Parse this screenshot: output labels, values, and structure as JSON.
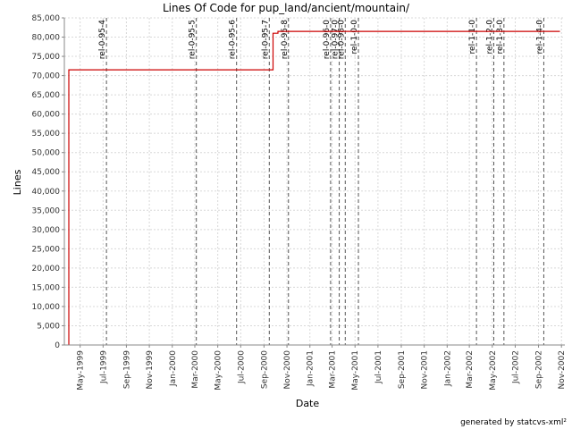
{
  "chart_data": {
    "type": "line",
    "title": "Lines Of Code for pup_land/ancient/mountain/",
    "xlabel": "Date",
    "ylabel": "Lines",
    "ylim": [
      0,
      85000
    ],
    "xlim": [
      "1999-03-20",
      "2002-11-10"
    ],
    "y_ticks": [
      {
        "value": 0,
        "label": "0"
      },
      {
        "value": 5000,
        "label": "5,000"
      },
      {
        "value": 10000,
        "label": "10,000"
      },
      {
        "value": 15000,
        "label": "15,000"
      },
      {
        "value": 20000,
        "label": "20,000"
      },
      {
        "value": 25000,
        "label": "25,000"
      },
      {
        "value": 30000,
        "label": "30,000"
      },
      {
        "value": 35000,
        "label": "35,000"
      },
      {
        "value": 40000,
        "label": "40,000"
      },
      {
        "value": 45000,
        "label": "45,000"
      },
      {
        "value": 50000,
        "label": "50,000"
      },
      {
        "value": 55000,
        "label": "55,000"
      },
      {
        "value": 60000,
        "label": "60,000"
      },
      {
        "value": 65000,
        "label": "65,000"
      },
      {
        "value": 70000,
        "label": "70,000"
      },
      {
        "value": 75000,
        "label": "75,000"
      },
      {
        "value": 80000,
        "label": "80,000"
      },
      {
        "value": 85000,
        "label": "85,000"
      }
    ],
    "x_ticks": [
      {
        "date": "1999-05-01",
        "label": "May-1999"
      },
      {
        "date": "1999-07-01",
        "label": "Jul-1999"
      },
      {
        "date": "1999-09-01",
        "label": "Sep-1999"
      },
      {
        "date": "1999-11-01",
        "label": "Nov-1999"
      },
      {
        "date": "2000-01-01",
        "label": "Jan-2000"
      },
      {
        "date": "2000-03-01",
        "label": "Mar-2000"
      },
      {
        "date": "2000-05-01",
        "label": "May-2000"
      },
      {
        "date": "2000-07-01",
        "label": "Jul-2000"
      },
      {
        "date": "2000-09-01",
        "label": "Sep-2000"
      },
      {
        "date": "2000-11-01",
        "label": "Nov-2000"
      },
      {
        "date": "2001-01-01",
        "label": "Jan-2001"
      },
      {
        "date": "2001-03-01",
        "label": "Mar-2001"
      },
      {
        "date": "2001-05-01",
        "label": "May-2001"
      },
      {
        "date": "2001-07-01",
        "label": "Jul-2001"
      },
      {
        "date": "2001-09-01",
        "label": "Sep-2001"
      },
      {
        "date": "2001-11-01",
        "label": "Nov-2001"
      },
      {
        "date": "2002-01-01",
        "label": "Jan-2002"
      },
      {
        "date": "2002-03-01",
        "label": "Mar-2002"
      },
      {
        "date": "2002-05-01",
        "label": "May-2002"
      },
      {
        "date": "2002-07-01",
        "label": "Jul-2002"
      },
      {
        "date": "2002-09-01",
        "label": "Sep-2002"
      },
      {
        "date": "2002-11-01",
        "label": "Nov-2002"
      }
    ],
    "series": [
      {
        "color": "#cc0000",
        "step": true,
        "points": [
          {
            "x": "1999-04-01",
            "y": 0
          },
          {
            "x": "1999-04-01",
            "y": 71500
          },
          {
            "x": "2000-09-25",
            "y": 71500
          },
          {
            "x": "2000-09-25",
            "y": 81000
          },
          {
            "x": "2000-10-08",
            "y": 81000
          },
          {
            "x": "2000-10-08",
            "y": 81500
          },
          {
            "x": "2002-10-28",
            "y": 81500
          }
        ]
      }
    ],
    "markers": [
      {
        "date": "1999-07-10",
        "label": "rel-0-95-4"
      },
      {
        "date": "2000-03-05",
        "label": "rel-0-95-5"
      },
      {
        "date": "2000-06-20",
        "label": "rel-0-95-6"
      },
      {
        "date": "2000-09-15",
        "label": "rel-0-95-7"
      },
      {
        "date": "2000-11-05",
        "label": "rel-0-95-8"
      },
      {
        "date": "2001-02-25",
        "label": "rel-0-96-0"
      },
      {
        "date": "2001-03-20",
        "label": "rel-0-97-0"
      },
      {
        "date": "2001-04-05",
        "label": "rel-0-98-0"
      },
      {
        "date": "2001-05-10",
        "label": "rel-1-0-0"
      },
      {
        "date": "2002-03-20",
        "label": "rel-1-1-0"
      },
      {
        "date": "2002-05-05",
        "label": "rel-1-2-0"
      },
      {
        "date": "2002-06-01",
        "label": "rel-1-3-0"
      },
      {
        "date": "2002-09-15",
        "label": "rel-1-4-0"
      }
    ],
    "grid": true,
    "legend": "none"
  },
  "footer_text": "generated by statcvs-xml²"
}
